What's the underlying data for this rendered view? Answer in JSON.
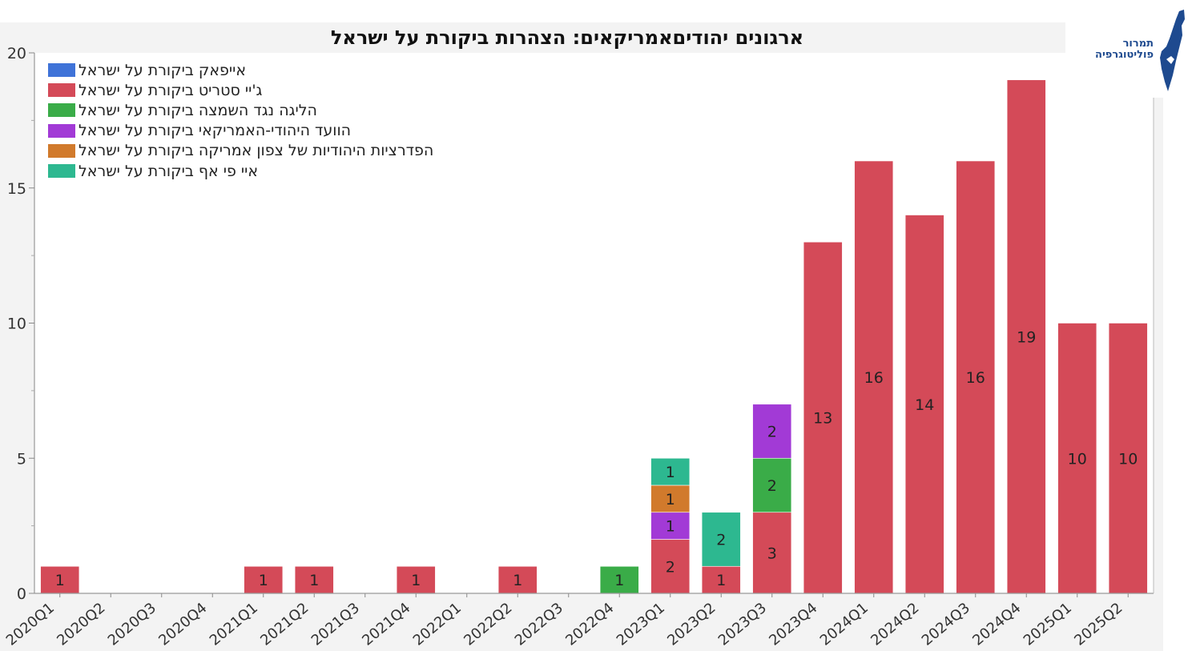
{
  "logo": {
    "line1": "תמרור",
    "line2": "פוליטוגרפיה",
    "brand_color": "#1e4a8f"
  },
  "chart_data": {
    "type": "bar",
    "stacked": true,
    "title": "ארגונים יהודיםאמריקאים: הצהרות ביקורת על ישראל",
    "xlabel": "",
    "ylabel": "",
    "ylim": [
      0,
      20
    ],
    "yticks": [
      0,
      5,
      10,
      15,
      20
    ],
    "grid": false,
    "legend_position": "top-left",
    "categories": [
      "2020Q1",
      "2020Q2",
      "2020Q3",
      "2020Q4",
      "2021Q1",
      "2021Q2",
      "2021Q3",
      "2021Q4",
      "2022Q1",
      "2022Q2",
      "2022Q3",
      "2022Q4",
      "2023Q1",
      "2023Q2",
      "2023Q3",
      "2023Q4",
      "2024Q1",
      "2024Q2",
      "2024Q3",
      "2024Q4",
      "2025Q1",
      "2025Q2"
    ],
    "series": [
      {
        "name": "אייפאק ביקורת על ישראל",
        "color": "#3f73d8",
        "values": [
          0,
          0,
          0,
          0,
          0,
          0,
          0,
          0,
          0,
          0,
          0,
          0,
          0,
          0,
          0,
          0,
          0,
          0,
          0,
          0,
          0,
          0
        ]
      },
      {
        "name": "ג'יי סטריט ביקורת על ישראל",
        "color": "#d44a58",
        "values": [
          1,
          0,
          0,
          0,
          1,
          1,
          0,
          1,
          0,
          1,
          0,
          0,
          2,
          1,
          3,
          13,
          16,
          14,
          16,
          19,
          10,
          10
        ]
      },
      {
        "name": "הליגה נגד השמצה ביקורת על ישראל",
        "color": "#3aac48",
        "values": [
          0,
          0,
          0,
          0,
          0,
          0,
          0,
          0,
          0,
          0,
          0,
          1,
          0,
          0,
          2,
          0,
          0,
          0,
          0,
          0,
          0,
          0
        ]
      },
      {
        "name": "הוועד היהודי-האמריקאי ביקורת על ישראל",
        "color": "#a23ad6",
        "values": [
          0,
          0,
          0,
          0,
          0,
          0,
          0,
          0,
          0,
          0,
          0,
          0,
          1,
          0,
          2,
          0,
          0,
          0,
          0,
          0,
          0,
          0
        ]
      },
      {
        "name": "הפדרציות היהודיות של צפון אמריקה ביקורת על ישראל",
        "color": "#d17a2c",
        "values": [
          0,
          0,
          0,
          0,
          0,
          0,
          0,
          0,
          0,
          0,
          0,
          0,
          1,
          0,
          0,
          0,
          0,
          0,
          0,
          0,
          0,
          0
        ]
      },
      {
        "name": "איי פי אף  ביקורת על ישראל",
        "color": "#2db890",
        "values": [
          0,
          0,
          0,
          0,
          0,
          0,
          0,
          0,
          0,
          0,
          0,
          0,
          1,
          2,
          0,
          0,
          0,
          0,
          0,
          0,
          0,
          0
        ]
      }
    ]
  }
}
